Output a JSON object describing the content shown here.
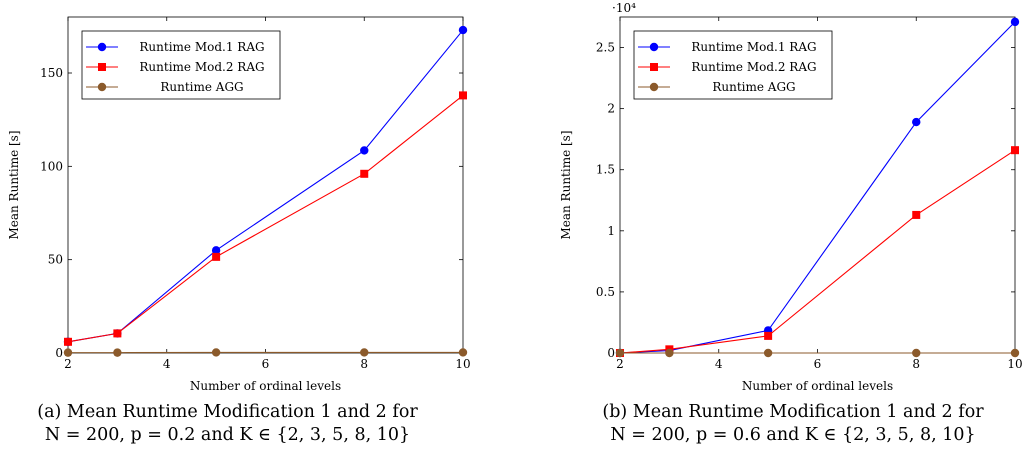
{
  "chart_data": [
    {
      "type": "line",
      "xlabel": "Number of ordinal levels",
      "ylabel": "Mean Runtime [s]",
      "xlim": [
        2,
        10
      ],
      "ylim": [
        0,
        180
      ],
      "xticks": [
        2,
        4,
        6,
        8,
        10
      ],
      "yticks": [
        0,
        50,
        100,
        150
      ],
      "ytick_labels": [
        "0",
        "50",
        "100",
        "150"
      ],
      "exponent_label": "",
      "grid": false,
      "legend_position": "top-left",
      "x": [
        2,
        3,
        5,
        8,
        10
      ],
      "series": [
        {
          "name": "Runtime Mod.1 RAG",
          "color": "#0000ff",
          "marker": "circle",
          "values": [
            6,
            10.5,
            55,
            108.5,
            173
          ]
        },
        {
          "name": "Runtime Mod.2 RAG",
          "color": "#ff0000",
          "marker": "square",
          "values": [
            6,
            10.5,
            51.5,
            96,
            138
          ]
        },
        {
          "name": "Runtime AGG",
          "color": "#8b5a2b",
          "marker": "circle",
          "values": [
            0.2,
            0.2,
            0.3,
            0.3,
            0.3
          ]
        }
      ],
      "caption_line1": "(a) Mean Runtime Modification 1 and 2 for",
      "caption_line2": "N = 200, p = 0.2 and K ∈ {2, 3, 5, 8, 10}"
    },
    {
      "type": "line",
      "xlabel": "Number of ordinal levels",
      "ylabel": "Mean Runtime [s]",
      "xlim": [
        2,
        10
      ],
      "ylim": [
        0,
        27500
      ],
      "xticks": [
        2,
        4,
        6,
        8,
        10
      ],
      "yticks": [
        0,
        5000,
        10000,
        15000,
        20000,
        25000
      ],
      "ytick_labels": [
        "0",
        "0.5",
        "1",
        "1.5",
        "2",
        "2.5"
      ],
      "exponent_label": "·10⁴",
      "grid": false,
      "legend_position": "top-left",
      "x": [
        2,
        3,
        5,
        8,
        10
      ],
      "series": [
        {
          "name": "Runtime Mod.1 RAG",
          "color": "#0000ff",
          "marker": "circle",
          "values": [
            0,
            200,
            1850,
            18900,
            27100
          ]
        },
        {
          "name": "Runtime Mod.2 RAG",
          "color": "#ff0000",
          "marker": "square",
          "values": [
            0,
            300,
            1400,
            11300,
            16600
          ]
        },
        {
          "name": "Runtime AGG",
          "color": "#8b5a2b",
          "marker": "circle",
          "values": [
            0,
            0,
            0,
            0,
            0
          ]
        }
      ],
      "caption_line1": "(b) Mean Runtime Modification 1 and 2 for",
      "caption_line2": "N = 200, p = 0.6 and K ∈ {2, 3, 5, 8, 10}"
    }
  ]
}
